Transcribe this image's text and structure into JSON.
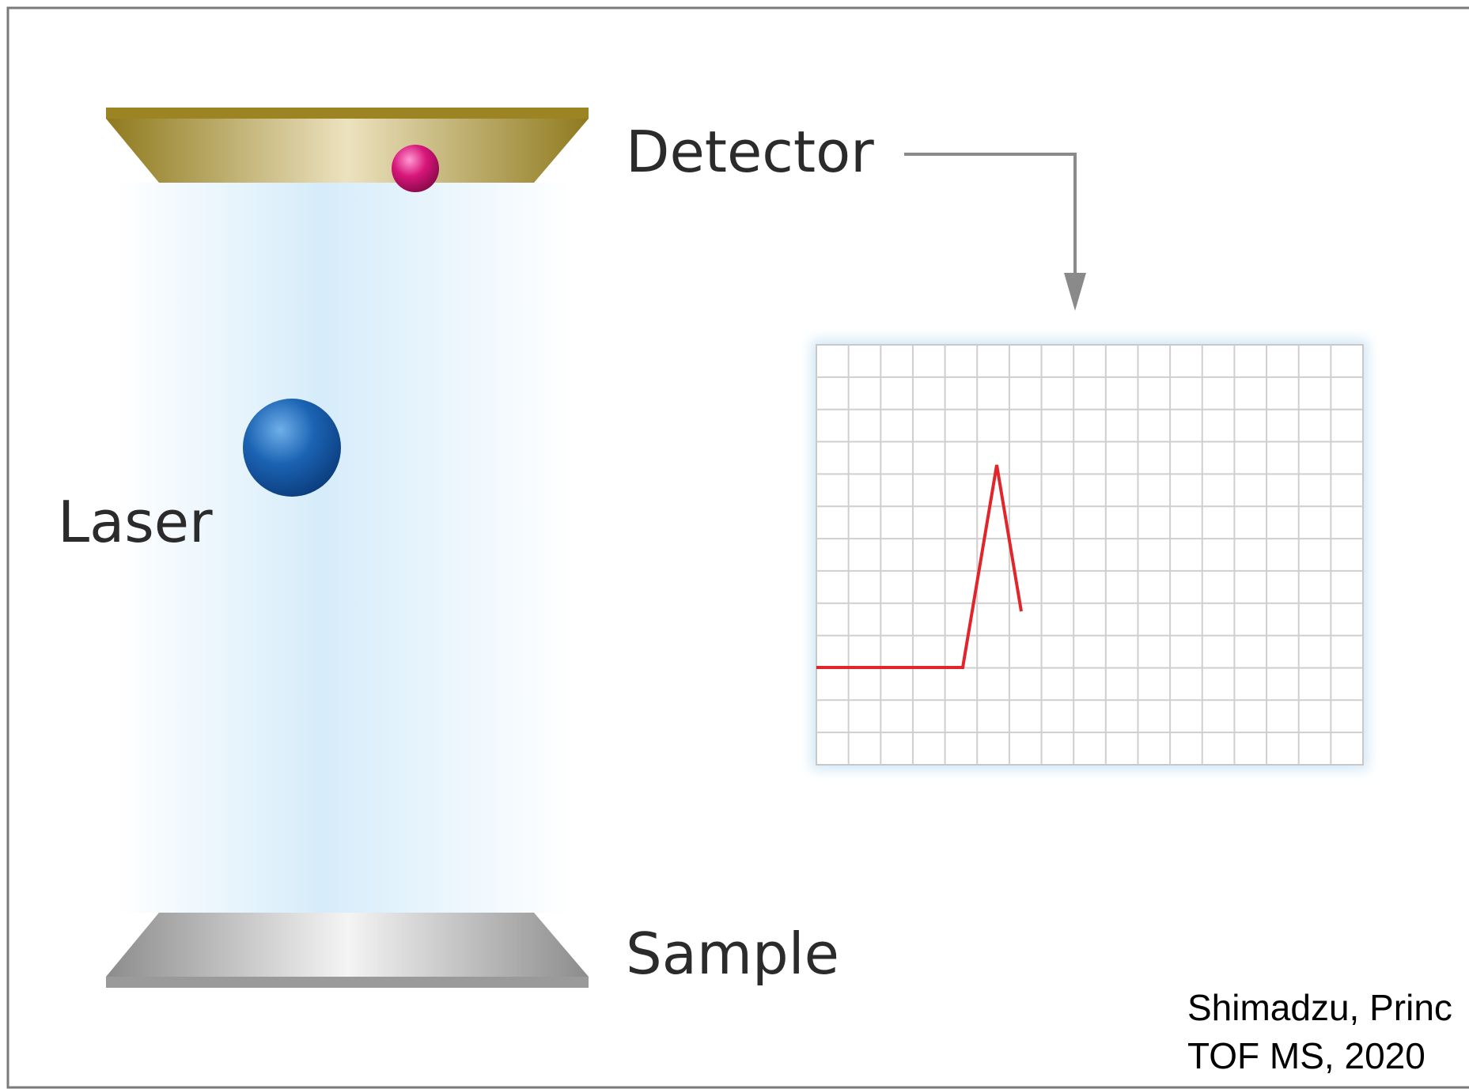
{
  "labels": {
    "detector": "Detector",
    "laser": "Laser",
    "sample": "Sample"
  },
  "citation": {
    "line1": "Shimadzu,  Princ",
    "line2": "TOF MS, 2020"
  }
}
